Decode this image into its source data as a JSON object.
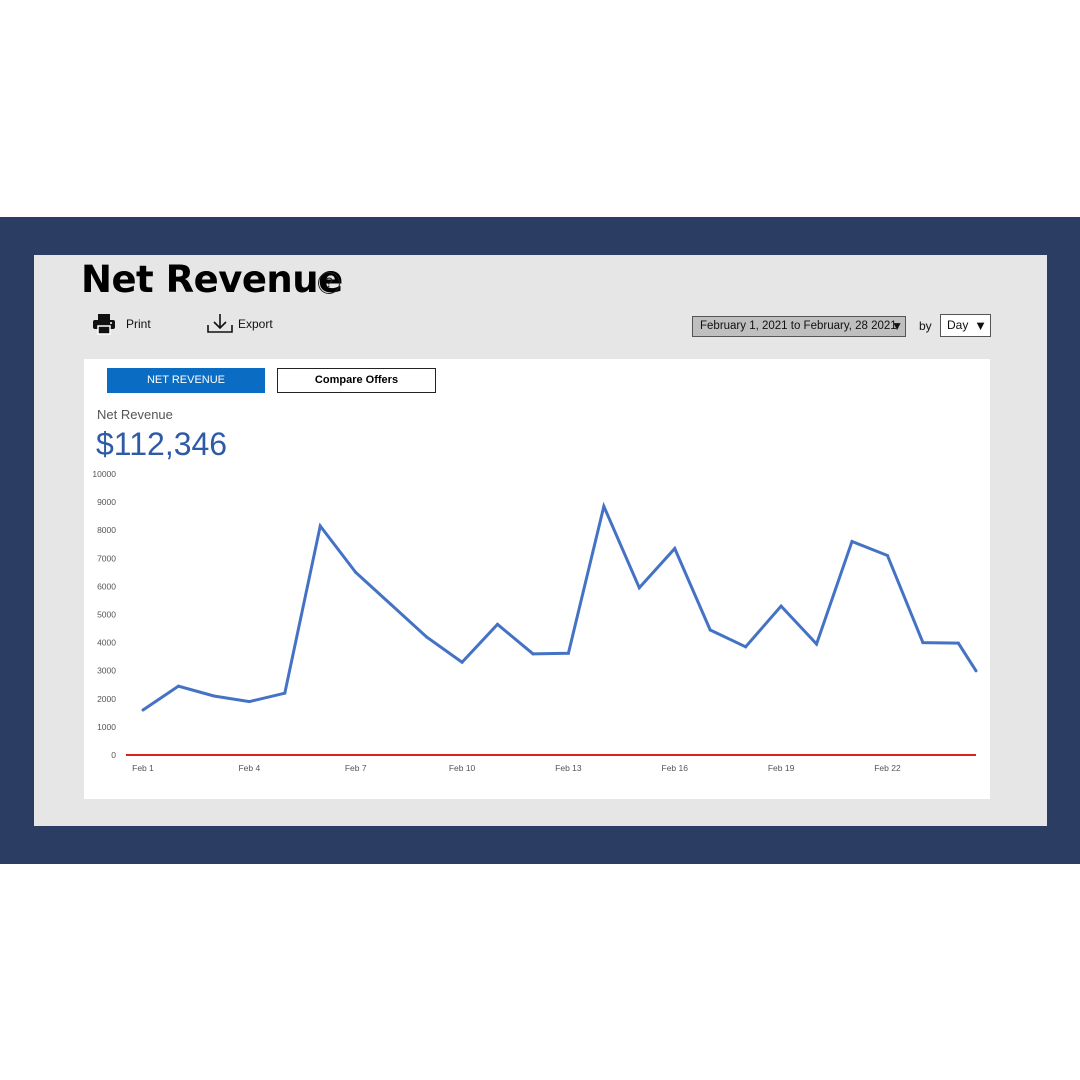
{
  "page": {
    "title": "Net Revenue",
    "help_glyph": "?",
    "help_icon": "question-circle-icon"
  },
  "toolbar": {
    "print_label": "Print",
    "print_icon": "printer-icon",
    "export_label": "Export",
    "export_icon": "download-icon"
  },
  "filters": {
    "date_range": "February 1, 2021 to February, 28 2021",
    "by_label": "by",
    "period": "Day",
    "dropdown_glyph": "▼"
  },
  "tabs": {
    "net_revenue": "NET REVENUE",
    "compare_offers": "Compare Offers"
  },
  "metric": {
    "label": "Net Revenue",
    "value": "$112,346"
  },
  "colors": {
    "frame": "#2b3d63",
    "panel": "#e6e6e6",
    "accent": "#0b6cc4",
    "line": "#4472c4",
    "baseline": "#e01e1e",
    "metric_value": "#2e5aa6"
  },
  "chart_data": {
    "type": "line",
    "title": "",
    "xlabel": "",
    "ylabel": "",
    "ylim": [
      0,
      10000
    ],
    "yticks": [
      0,
      1000,
      2000,
      3000,
      4000,
      5000,
      6000,
      7000,
      8000,
      9000,
      10000
    ],
    "x": [
      "Feb 1",
      "Feb 2",
      "Feb 3",
      "Feb 4",
      "Feb 5",
      "Feb 6",
      "Feb 7",
      "Feb 8",
      "Feb 9",
      "Feb 10",
      "Feb 11",
      "Feb 12",
      "Feb 13",
      "Feb 14",
      "Feb 15",
      "Feb 16",
      "Feb 17",
      "Feb 18",
      "Feb 19",
      "Feb 20",
      "Feb 21",
      "Feb 22",
      "Feb 23",
      "Feb 24",
      "Feb 25"
    ],
    "xtick_labels": [
      "Feb 1",
      "Feb 4",
      "Feb 7",
      "Feb 10",
      "Feb 13",
      "Feb 16",
      "Feb 19",
      "Feb 22"
    ],
    "values": [
      1600,
      2450,
      2100,
      1900,
      2200,
      8150,
      6500,
      5350,
      4200,
      3300,
      4650,
      3600,
      3620,
      8850,
      5950,
      7350,
      4450,
      3850,
      5300,
      3950,
      7600,
      7100,
      4000,
      3980,
      2000
    ],
    "baseline": 0,
    "grid": false,
    "legend": "none"
  }
}
